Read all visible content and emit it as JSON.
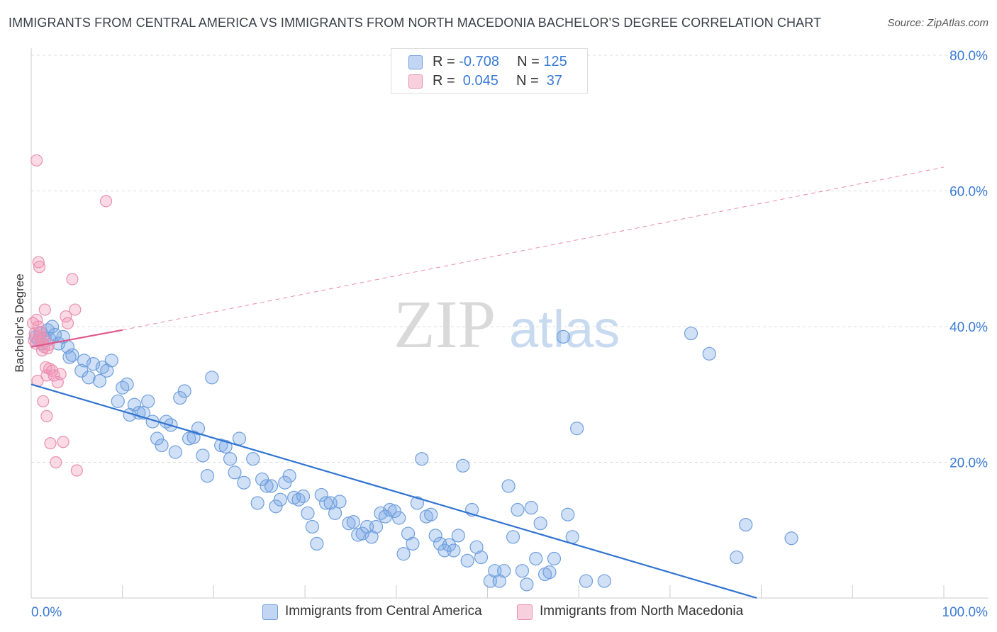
{
  "title": "IMMIGRANTS FROM CENTRAL AMERICA VS IMMIGRANTS FROM NORTH MACEDONIA BACHELOR'S DEGREE CORRELATION CHART",
  "source": "Source: ZipAtlas.com",
  "watermark": {
    "zip": "ZIP",
    "atlas": "atlas"
  },
  "legend": {
    "rows": [
      {
        "r_label": "R = ",
        "r_value": "-0.708",
        "n_label": "N = ",
        "n_value": "125"
      },
      {
        "r_label": "R = ",
        "r_value": " 0.045",
        "n_label": "N = ",
        "n_value": " 37"
      }
    ]
  },
  "bottom_legend": [
    "Immigrants from Central America",
    "Immigrants from North Macedonia"
  ],
  "colors": {
    "blue_fill": "rgba(120,165,230,0.35)",
    "blue_stroke": "#6f9fdc",
    "blue_line": "#2f73d0",
    "pink_fill": "rgba(240,150,180,0.35)",
    "pink_stroke": "#ea8fb0",
    "pink_line": "#e0588c",
    "axis_label": "#3a7bd5"
  },
  "chart_data": {
    "type": "scatter",
    "title": "IMMIGRANTS FROM CENTRAL AMERICA VS IMMIGRANTS FROM NORTH MACEDONIA BACHELOR'S DEGREE CORRELATION CHART",
    "xlabel": "",
    "ylabel": "Bachelor's Degree",
    "xlim": [
      0,
      100
    ],
    "ylim": [
      0,
      80
    ],
    "x_tick_labels": [
      "0.0%",
      "100.0%"
    ],
    "y_ticks": [
      20,
      40,
      60,
      80
    ],
    "y_tick_labels": [
      "20.0%",
      "40.0%",
      "60.0%",
      "80.0%"
    ],
    "grid": true,
    "legend_position": "top-center",
    "series": [
      {
        "name": "Immigrants from Central America",
        "R": -0.708,
        "N": 125,
        "trend": {
          "x": [
            0,
            79.5
          ],
          "y": [
            31.5,
            0
          ]
        },
        "points": [
          [
            0.5,
            38.5
          ],
          [
            0.8,
            38
          ],
          [
            1,
            39
          ],
          [
            1.2,
            37.5
          ],
          [
            1.5,
            38.3
          ],
          [
            1.8,
            39.5
          ],
          [
            2,
            38.2
          ],
          [
            2.3,
            40
          ],
          [
            2.6,
            38.8
          ],
          [
            3,
            37.5
          ],
          [
            3.5,
            38.5
          ],
          [
            4,
            37
          ],
          [
            4.2,
            35.5
          ],
          [
            4.5,
            35.8
          ],
          [
            5.5,
            33.5
          ],
          [
            5.8,
            35
          ],
          [
            6.3,
            32.5
          ],
          [
            6.8,
            34.5
          ],
          [
            7.5,
            32
          ],
          [
            7.8,
            34
          ],
          [
            8.3,
            33.5
          ],
          [
            8.8,
            35
          ],
          [
            9.5,
            29
          ],
          [
            10,
            31
          ],
          [
            10.5,
            31.5
          ],
          [
            10.8,
            27
          ],
          [
            11.3,
            28.5
          ],
          [
            11.8,
            27.3
          ],
          [
            12.3,
            27.3
          ],
          [
            12.8,
            29
          ],
          [
            13.3,
            26
          ],
          [
            13.8,
            23.5
          ],
          [
            14.3,
            22.5
          ],
          [
            14.8,
            26
          ],
          [
            15.3,
            25.5
          ],
          [
            15.8,
            21.5
          ],
          [
            16.3,
            29.5
          ],
          [
            16.8,
            30.5
          ],
          [
            17.3,
            23.5
          ],
          [
            17.8,
            23.7
          ],
          [
            18.3,
            25
          ],
          [
            18.8,
            21
          ],
          [
            19.3,
            18
          ],
          [
            19.8,
            32.5
          ],
          [
            20.8,
            22.5
          ],
          [
            21.3,
            22.3
          ],
          [
            21.8,
            20.5
          ],
          [
            22.3,
            18.5
          ],
          [
            22.8,
            23.5
          ],
          [
            23.3,
            17
          ],
          [
            24.3,
            20.5
          ],
          [
            24.8,
            14
          ],
          [
            25.3,
            17.5
          ],
          [
            25.8,
            16.5
          ],
          [
            26.3,
            16.5
          ],
          [
            26.8,
            13.5
          ],
          [
            27.3,
            14.5
          ],
          [
            27.8,
            17
          ],
          [
            28.3,
            18
          ],
          [
            28.8,
            14.8
          ],
          [
            29.3,
            14.5
          ],
          [
            29.8,
            15
          ],
          [
            30.3,
            12.5
          ],
          [
            30.8,
            10.5
          ],
          [
            31.3,
            8
          ],
          [
            31.8,
            15.2
          ],
          [
            32.3,
            14
          ],
          [
            32.8,
            14
          ],
          [
            33.3,
            12.5
          ],
          [
            33.8,
            14.2
          ],
          [
            34.8,
            11
          ],
          [
            35.3,
            11.2
          ],
          [
            35.8,
            9.3
          ],
          [
            36.3,
            9.5
          ],
          [
            36.8,
            10.5
          ],
          [
            37.3,
            9
          ],
          [
            37.8,
            10.5
          ],
          [
            38.3,
            12.5
          ],
          [
            38.8,
            12
          ],
          [
            39.3,
            13
          ],
          [
            39.8,
            12.8
          ],
          [
            40.3,
            11.8
          ],
          [
            40.8,
            6.5
          ],
          [
            41.3,
            9.5
          ],
          [
            41.8,
            8
          ],
          [
            42.3,
            14
          ],
          [
            42.8,
            20.5
          ],
          [
            43.3,
            12
          ],
          [
            43.8,
            12.3
          ],
          [
            44.3,
            9.2
          ],
          [
            44.8,
            8
          ],
          [
            45.3,
            7
          ],
          [
            45.8,
            7.8
          ],
          [
            46.3,
            7
          ],
          [
            46.8,
            9.2
          ],
          [
            47.3,
            19.5
          ],
          [
            47.8,
            5.5
          ],
          [
            48.3,
            13
          ],
          [
            48.8,
            7.5
          ],
          [
            49.3,
            6
          ],
          [
            50.3,
            2.5
          ],
          [
            50.8,
            4
          ],
          [
            51.3,
            2.5
          ],
          [
            51.8,
            4
          ],
          [
            52.3,
            16.5
          ],
          [
            52.8,
            9
          ],
          [
            53.3,
            13
          ],
          [
            53.8,
            4
          ],
          [
            54.3,
            2
          ],
          [
            54.8,
            13.3
          ],
          [
            55.3,
            5.8
          ],
          [
            55.8,
            11
          ],
          [
            56.3,
            3.5
          ],
          [
            56.8,
            3.8
          ],
          [
            57.3,
            5.8
          ],
          [
            58.3,
            38.5
          ],
          [
            58.8,
            12.3
          ],
          [
            59.3,
            9
          ],
          [
            59.8,
            25
          ],
          [
            60.8,
            2.5
          ],
          [
            62.8,
            2.5
          ],
          [
            72.3,
            39
          ],
          [
            74.3,
            36
          ],
          [
            77.3,
            6
          ],
          [
            78.3,
            10.8
          ],
          [
            83.3,
            8.8
          ]
        ]
      },
      {
        "name": "Immigrants from North Macedonia",
        "R": 0.045,
        "N": 37,
        "trend_solid": {
          "x": [
            0,
            10
          ],
          "y": [
            37,
            39.5
          ]
        },
        "trend_dashed": {
          "x": [
            10,
            100
          ],
          "y": [
            39.5,
            63.5
          ]
        },
        "points": [
          [
            0.2,
            40.5
          ],
          [
            0.3,
            38
          ],
          [
            0.4,
            39
          ],
          [
            0.5,
            37.5
          ],
          [
            0.6,
            41
          ],
          [
            0.7,
            32
          ],
          [
            0.8,
            40
          ],
          [
            0.9,
            38.5
          ],
          [
            1.0,
            39.2
          ],
          [
            1.1,
            37.8
          ],
          [
            1.2,
            36.5
          ],
          [
            1.3,
            38.3
          ],
          [
            1.4,
            37
          ],
          [
            1.5,
            42.5
          ],
          [
            1.6,
            34
          ],
          [
            1.7,
            32.8
          ],
          [
            1.8,
            36.8
          ],
          [
            1.9,
            37.3
          ],
          [
            2.0,
            33.8
          ],
          [
            2.1,
            22.8
          ],
          [
            2.3,
            33.5
          ],
          [
            2.5,
            32.8
          ],
          [
            2.7,
            20
          ],
          [
            2.9,
            31.8
          ],
          [
            3.2,
            33
          ],
          [
            3.5,
            23
          ],
          [
            3.8,
            41.5
          ],
          [
            4.0,
            40.5
          ],
          [
            4.5,
            47
          ],
          [
            4.8,
            42.5
          ],
          [
            5.0,
            18.8
          ],
          [
            0.6,
            64.5
          ],
          [
            8.2,
            58.5
          ],
          [
            0.8,
            49.5
          ],
          [
            0.9,
            48.8
          ],
          [
            1.7,
            26.8
          ],
          [
            1.3,
            29
          ]
        ]
      }
    ]
  }
}
